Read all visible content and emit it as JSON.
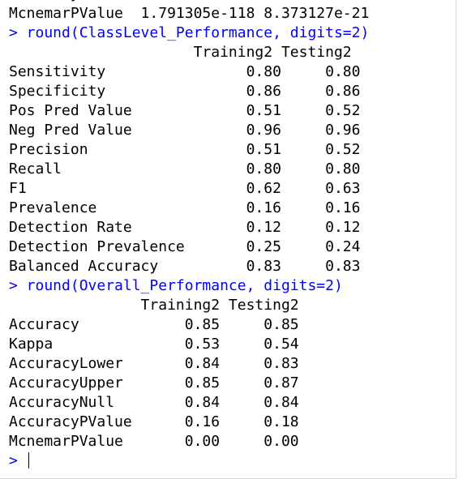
{
  "console": {
    "prompt_symbol": ">",
    "lines": [
      {
        "kind": "output",
        "text": "       y"
      },
      {
        "kind": "output",
        "text": "McnemarPValue  1.791305e-118 8.373127e-21"
      },
      {
        "kind": "command",
        "text": "> round(ClassLevel_Performance, digits=2)"
      },
      {
        "kind": "output",
        "text": "                     Training2 Testing2"
      },
      {
        "kind": "output",
        "text": "Sensitivity                0.80     0.80"
      },
      {
        "kind": "output",
        "text": "Specificity                0.86     0.86"
      },
      {
        "kind": "output",
        "text": "Pos Pred Value             0.51     0.52"
      },
      {
        "kind": "output",
        "text": "Neg Pred Value             0.96     0.96"
      },
      {
        "kind": "output",
        "text": "Precision                  0.51     0.52"
      },
      {
        "kind": "output",
        "text": "Recall                     0.80     0.80"
      },
      {
        "kind": "output",
        "text": "F1                         0.62     0.63"
      },
      {
        "kind": "output",
        "text": "Prevalence                 0.16     0.16"
      },
      {
        "kind": "output",
        "text": "Detection Rate             0.12     0.12"
      },
      {
        "kind": "output",
        "text": "Detection Prevalence       0.25     0.24"
      },
      {
        "kind": "output",
        "text": "Balanced Accuracy          0.83     0.83"
      },
      {
        "kind": "command",
        "text": "> round(Overall_Performance, digits=2)"
      },
      {
        "kind": "output",
        "text": "               Training2 Testing2"
      },
      {
        "kind": "output",
        "text": "Accuracy            0.85     0.85"
      },
      {
        "kind": "output",
        "text": "Kappa               0.53     0.54"
      },
      {
        "kind": "output",
        "text": "AccuracyLower       0.84     0.83"
      },
      {
        "kind": "output",
        "text": "AccuracyUpper       0.85     0.87"
      },
      {
        "kind": "output",
        "text": "AccuracyNull        0.84     0.84"
      },
      {
        "kind": "output",
        "text": "AccuracyPValue      0.16     0.18"
      },
      {
        "kind": "output",
        "text": "McnemarPValue       0.00     0.00"
      }
    ]
  },
  "colors": {
    "command": "#0000ff",
    "output": "#000000",
    "background": "#ffffff"
  }
}
